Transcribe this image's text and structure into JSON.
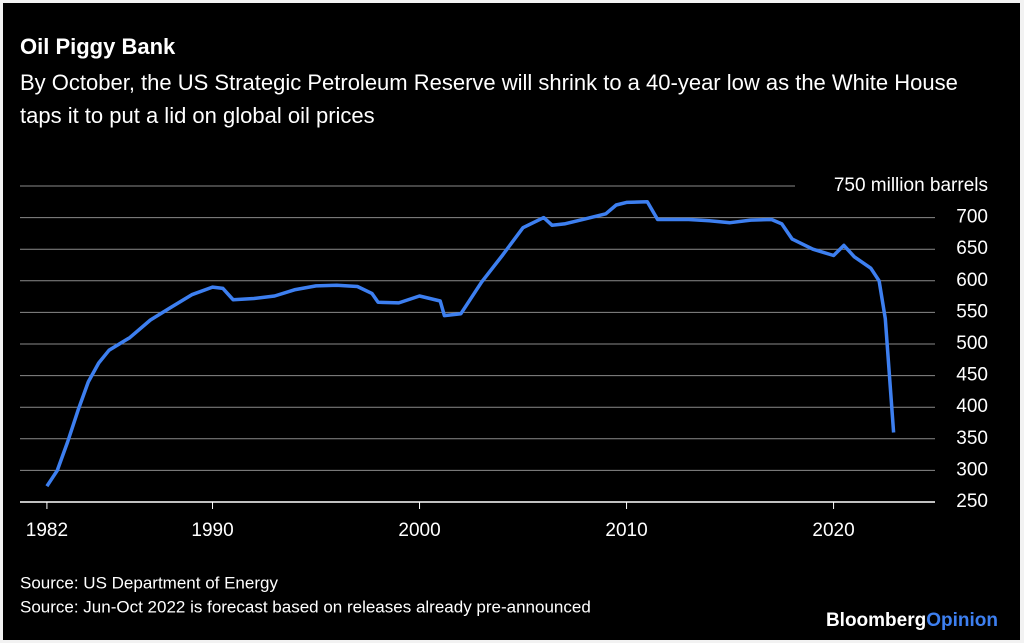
{
  "chart_data": {
    "type": "line",
    "title": "Oil Piggy Bank",
    "subtitle": "By October, the US Strategic Petroleum Reserve will shrink to a 40-year low as the White House taps it to put a lid on global oil prices",
    "x": [
      1982,
      1982.5,
      1983,
      1983.5,
      1984,
      1984.5,
      1985,
      1986,
      1987,
      1988,
      1989,
      1990,
      1990.5,
      1991,
      1992,
      1993,
      1994,
      1995,
      1996,
      1997,
      1997.7,
      1998,
      1999,
      2000,
      2000.5,
      2001,
      2001.2,
      2002,
      2003,
      2004,
      2005,
      2006,
      2006.4,
      2007,
      2008,
      2009,
      2009.5,
      2010,
      2011,
      2011.5,
      2013,
      2014,
      2015,
      2016,
      2017,
      2017.5,
      2018,
      2019,
      2020,
      2020.5,
      2021,
      2021.8,
      2022.2,
      2022.5,
      2022.9
    ],
    "values": [
      275,
      300,
      345,
      395,
      440,
      470,
      490,
      510,
      538,
      558,
      578,
      590,
      588,
      570,
      572,
      576,
      586,
      592,
      593,
      591,
      580,
      566,
      565,
      576,
      572,
      568,
      545,
      548,
      598,
      640,
      684,
      700,
      688,
      690,
      698,
      706,
      720,
      724,
      725,
      697,
      697,
      695,
      692,
      696,
      697,
      690,
      666,
      650,
      640,
      656,
      638,
      620,
      600,
      540,
      360
    ],
    "color": "#3d7ff0",
    "xlim": [
      1980.7,
      2024.9
    ],
    "xticks": [
      1982,
      1990,
      2000,
      2010,
      2020
    ],
    "ylim": [
      250,
      750
    ],
    "yticks": [
      250,
      300,
      350,
      400,
      450,
      500,
      550,
      600,
      650,
      700,
      {
        "value": 750,
        "label": "750 million barrels"
      }
    ],
    "grid": true,
    "sources": [
      "Source: US Department of Energy",
      "Source: Jun-Oct 2022 is forecast based on releases already pre-announced"
    ],
    "logo": [
      "Bloomberg",
      "Opinion"
    ]
  }
}
